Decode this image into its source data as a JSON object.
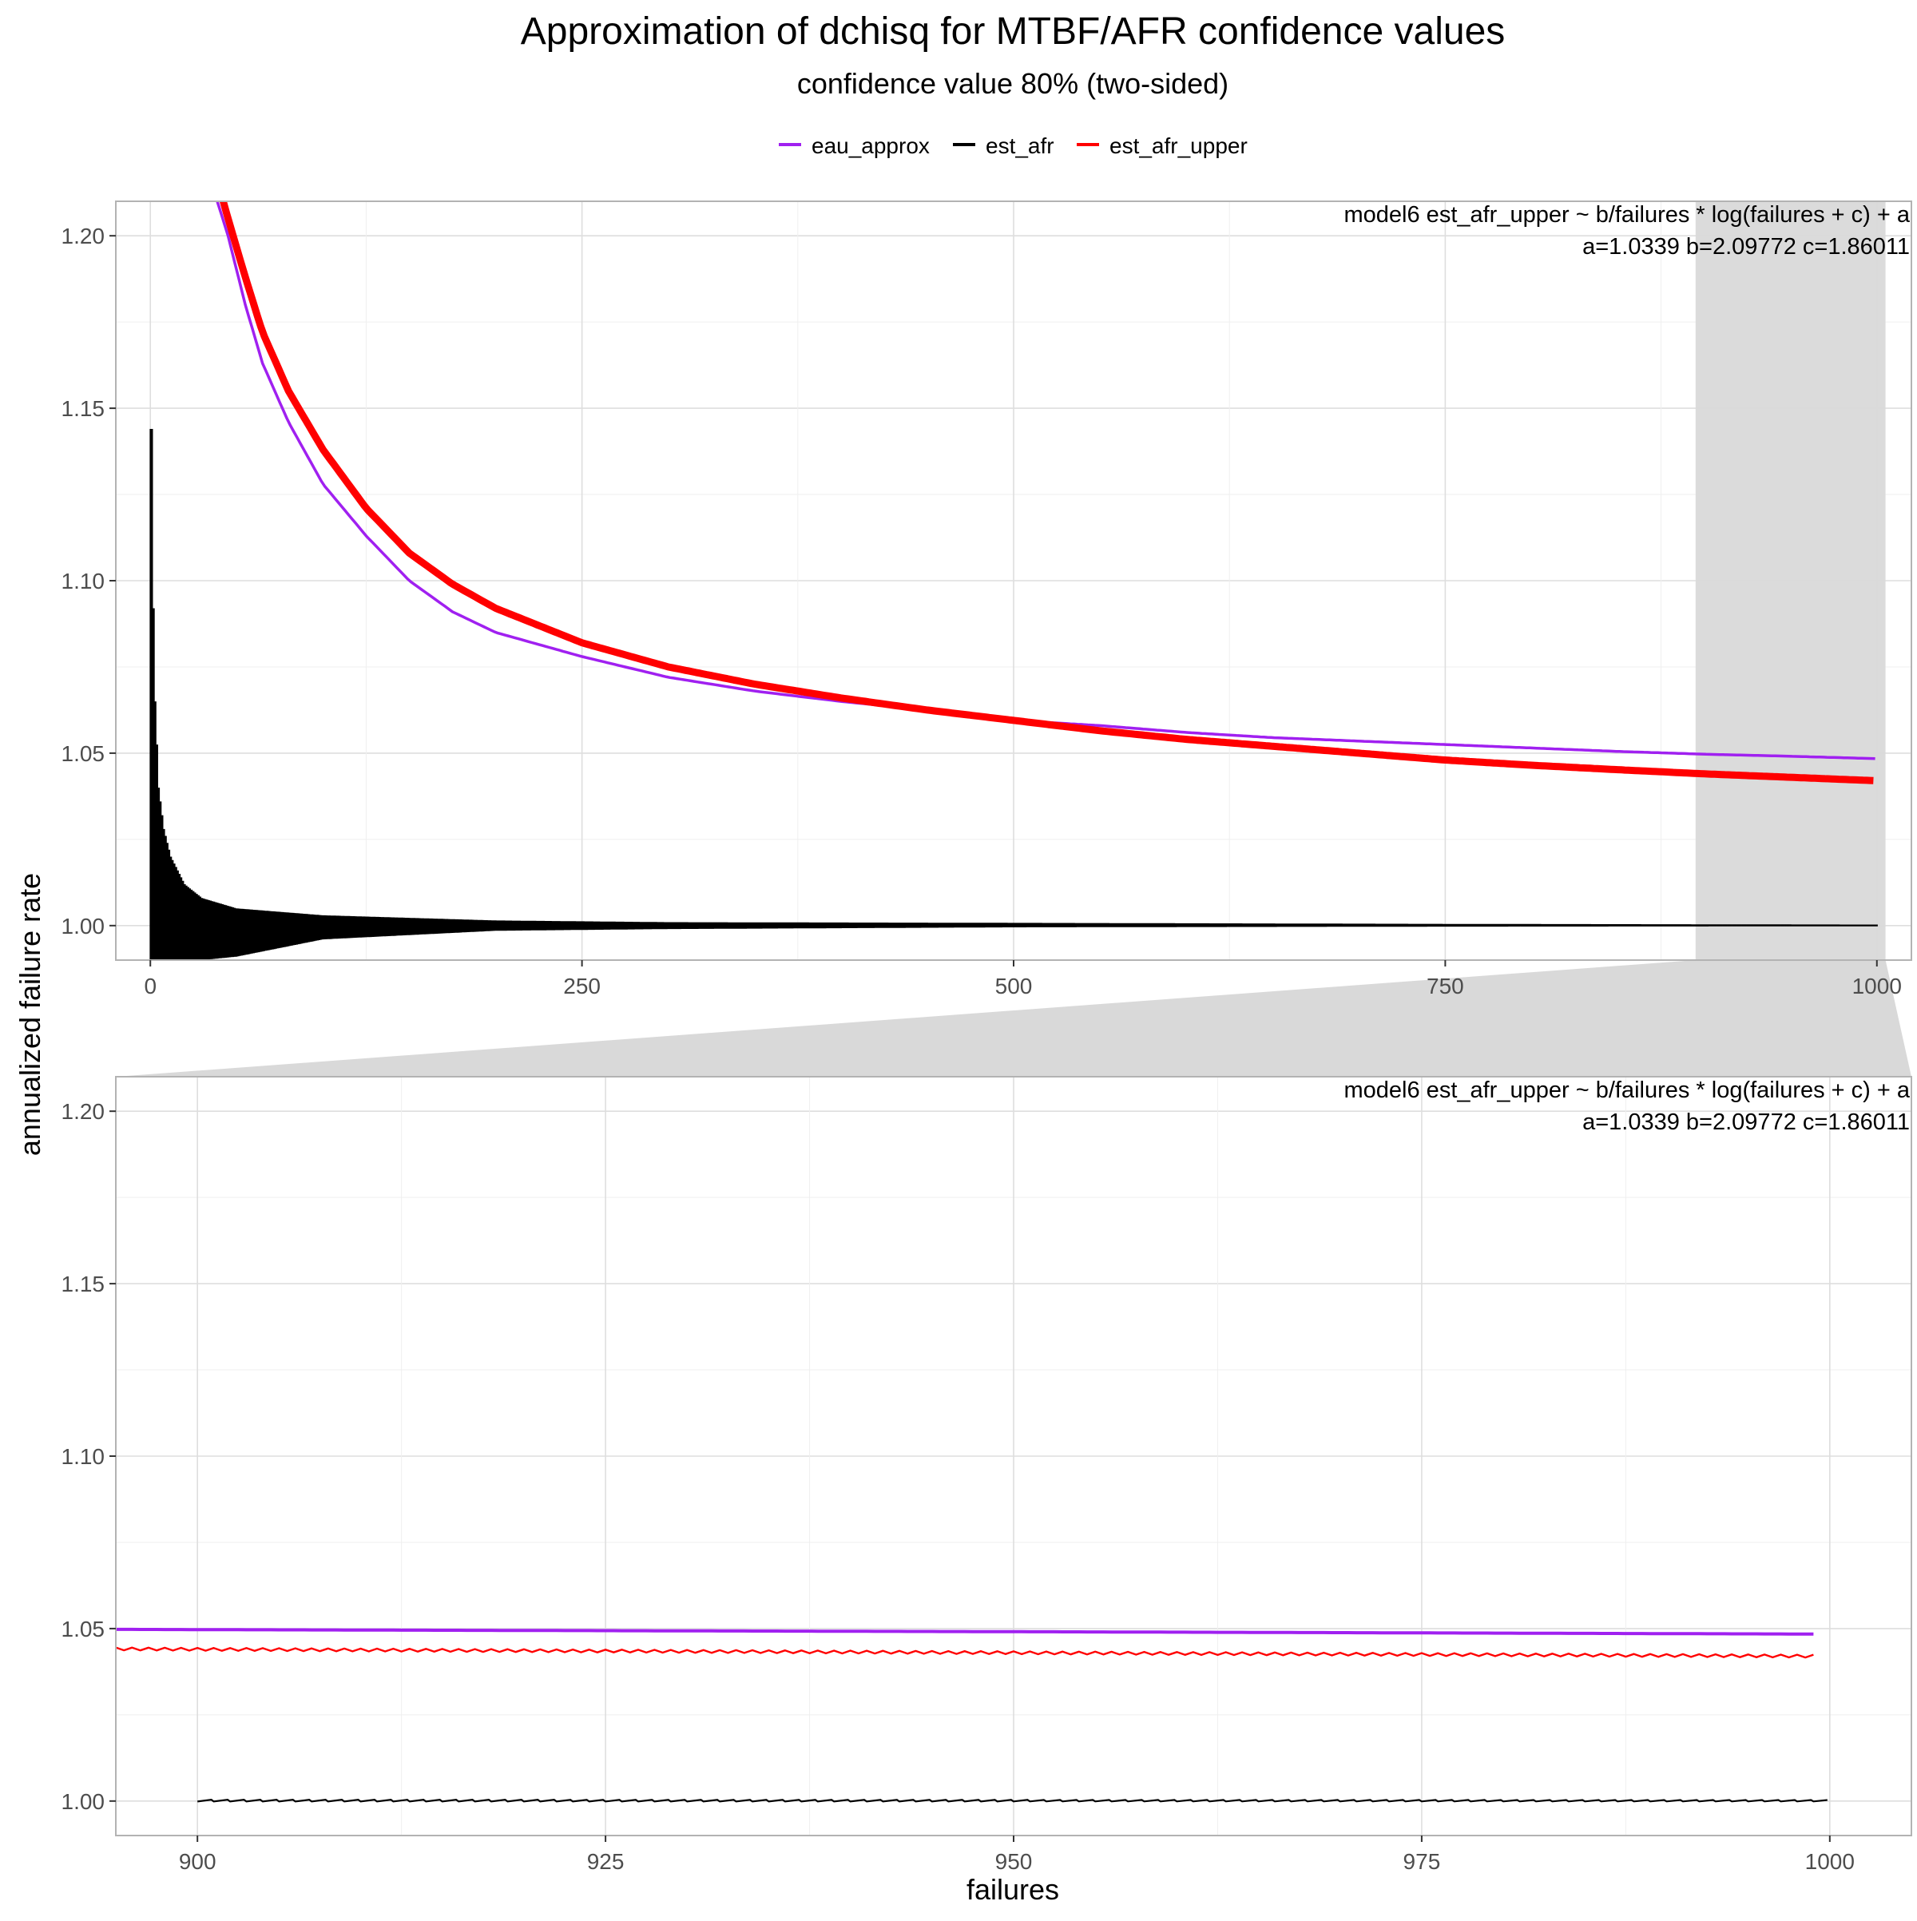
{
  "chart_data": {
    "type": "line",
    "title": "Approximation of dchisq for MTBF/AFR confidence values",
    "subtitle": "confidence value 80% (two-sided)",
    "xlabel": "failures",
    "ylabel": "annualized failure rate",
    "legend": {
      "position": "top",
      "entries": [
        {
          "name": "eau_approx",
          "color": "#a020f0"
        },
        {
          "name": "est_afr",
          "color": "#000000"
        },
        {
          "name": "est_afr_upper",
          "color": "#ff0000"
        }
      ]
    },
    "model": {
      "formula": "model6 est_afr_upper ~ b/failures * log(failures + c) + a",
      "params": "a=1.0339 b=2.09772 c=1.86011",
      "a": 1.0339,
      "b": 2.09772,
      "c": 1.86011
    },
    "grid": true,
    "panels": [
      {
        "name": "overview",
        "xlim": [
          -20,
          1020
        ],
        "ylim": [
          0.99,
          1.21
        ],
        "xticks": [
          0,
          250,
          500,
          750,
          1000
        ],
        "xtick_labels": [
          "0",
          "250",
          "500",
          "750",
          "1000"
        ],
        "yticks": [
          1.0,
          1.05,
          1.1,
          1.15,
          1.2
        ],
        "ytick_labels": [
          "1.00",
          "1.05",
          "1.10",
          "1.15",
          "1.20"
        ],
        "zoom_band": [
          895,
          1005
        ]
      },
      {
        "name": "zoom",
        "xlim": [
          895,
          1005
        ],
        "ylim": [
          0.99,
          1.21
        ],
        "xticks": [
          900,
          925,
          950,
          975,
          1000
        ],
        "xtick_labels": [
          "900",
          "925",
          "950",
          "975",
          "1000"
        ],
        "yticks": [
          1.0,
          1.05,
          1.1,
          1.15,
          1.2
        ],
        "ytick_labels": [
          "1.00",
          "1.05",
          "1.10",
          "1.15",
          "1.20"
        ]
      }
    ],
    "series": [
      {
        "name": "eau_approx",
        "color": "#a020f0",
        "x": [
          35,
          45,
          55,
          65,
          80,
          100,
          125,
          150,
          175,
          200,
          250,
          300,
          350,
          400,
          450,
          500,
          550,
          600,
          650,
          700,
          750,
          800,
          850,
          900,
          950,
          1000
        ],
        "y": [
          1.216,
          1.2,
          1.18,
          1.163,
          1.146,
          1.128,
          1.113,
          1.1,
          1.091,
          1.085,
          1.078,
          1.072,
          1.068,
          1.065,
          1.0625,
          1.0595,
          1.058,
          1.056,
          1.0545,
          1.0535,
          1.0525,
          1.0515,
          1.0505,
          1.0497,
          1.0491,
          1.0484
        ]
      },
      {
        "name": "est_afr_upper",
        "color": "#ff0000",
        "x": [
          40,
          45,
          55,
          65,
          80,
          100,
          125,
          150,
          175,
          200,
          250,
          300,
          350,
          400,
          450,
          500,
          550,
          600,
          650,
          700,
          750,
          800,
          850,
          900,
          950,
          1000
        ],
        "y": [
          1.214,
          1.205,
          1.188,
          1.172,
          1.155,
          1.138,
          1.121,
          1.108,
          1.099,
          1.092,
          1.082,
          1.075,
          1.07,
          1.066,
          1.0625,
          1.0595,
          1.0565,
          1.054,
          1.052,
          1.05,
          1.048,
          1.0465,
          1.0452,
          1.044,
          1.043,
          1.042
        ]
      },
      {
        "name": "est_afr",
        "color": "#000000",
        "x": [
          1,
          2,
          3,
          5,
          8,
          12,
          20,
          30,
          50,
          100,
          200,
          300,
          500,
          750,
          1000
        ],
        "y_max": [
          1.144,
          1.092,
          1.065,
          1.04,
          1.028,
          1.02,
          1.012,
          1.008,
          1.005,
          1.003,
          1.0015,
          1.001,
          1.0008,
          1.0005,
          1.0003
        ],
        "y_min": [
          0.99,
          0.99,
          0.99,
          0.99,
          0.99,
          0.99,
          0.99,
          0.99,
          0.991,
          0.996,
          0.9985,
          0.999,
          0.9995,
          0.9997,
          0.9998
        ]
      }
    ]
  }
}
